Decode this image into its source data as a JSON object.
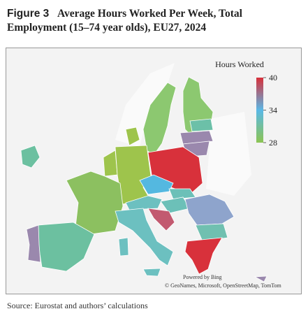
{
  "figure_label": "Figure 3",
  "title": [
    "Average Hours Worked Per Week, Total",
    "Employment (15–74 year olds), EU27, 2024"
  ],
  "legend": {
    "title": "Hours Worked",
    "range": [
      28,
      40
    ],
    "ticks": [
      40,
      34,
      28
    ],
    "colors": [
      "#d7303a",
      "#5ab8e6",
      "#8cc452"
    ]
  },
  "attribution": [
    "Powered by Bing",
    "© GeoNames, Microsoft, OpenStreetMap, TomTom"
  ],
  "source": "Source: Eurostat and authors’ calculations"
}
